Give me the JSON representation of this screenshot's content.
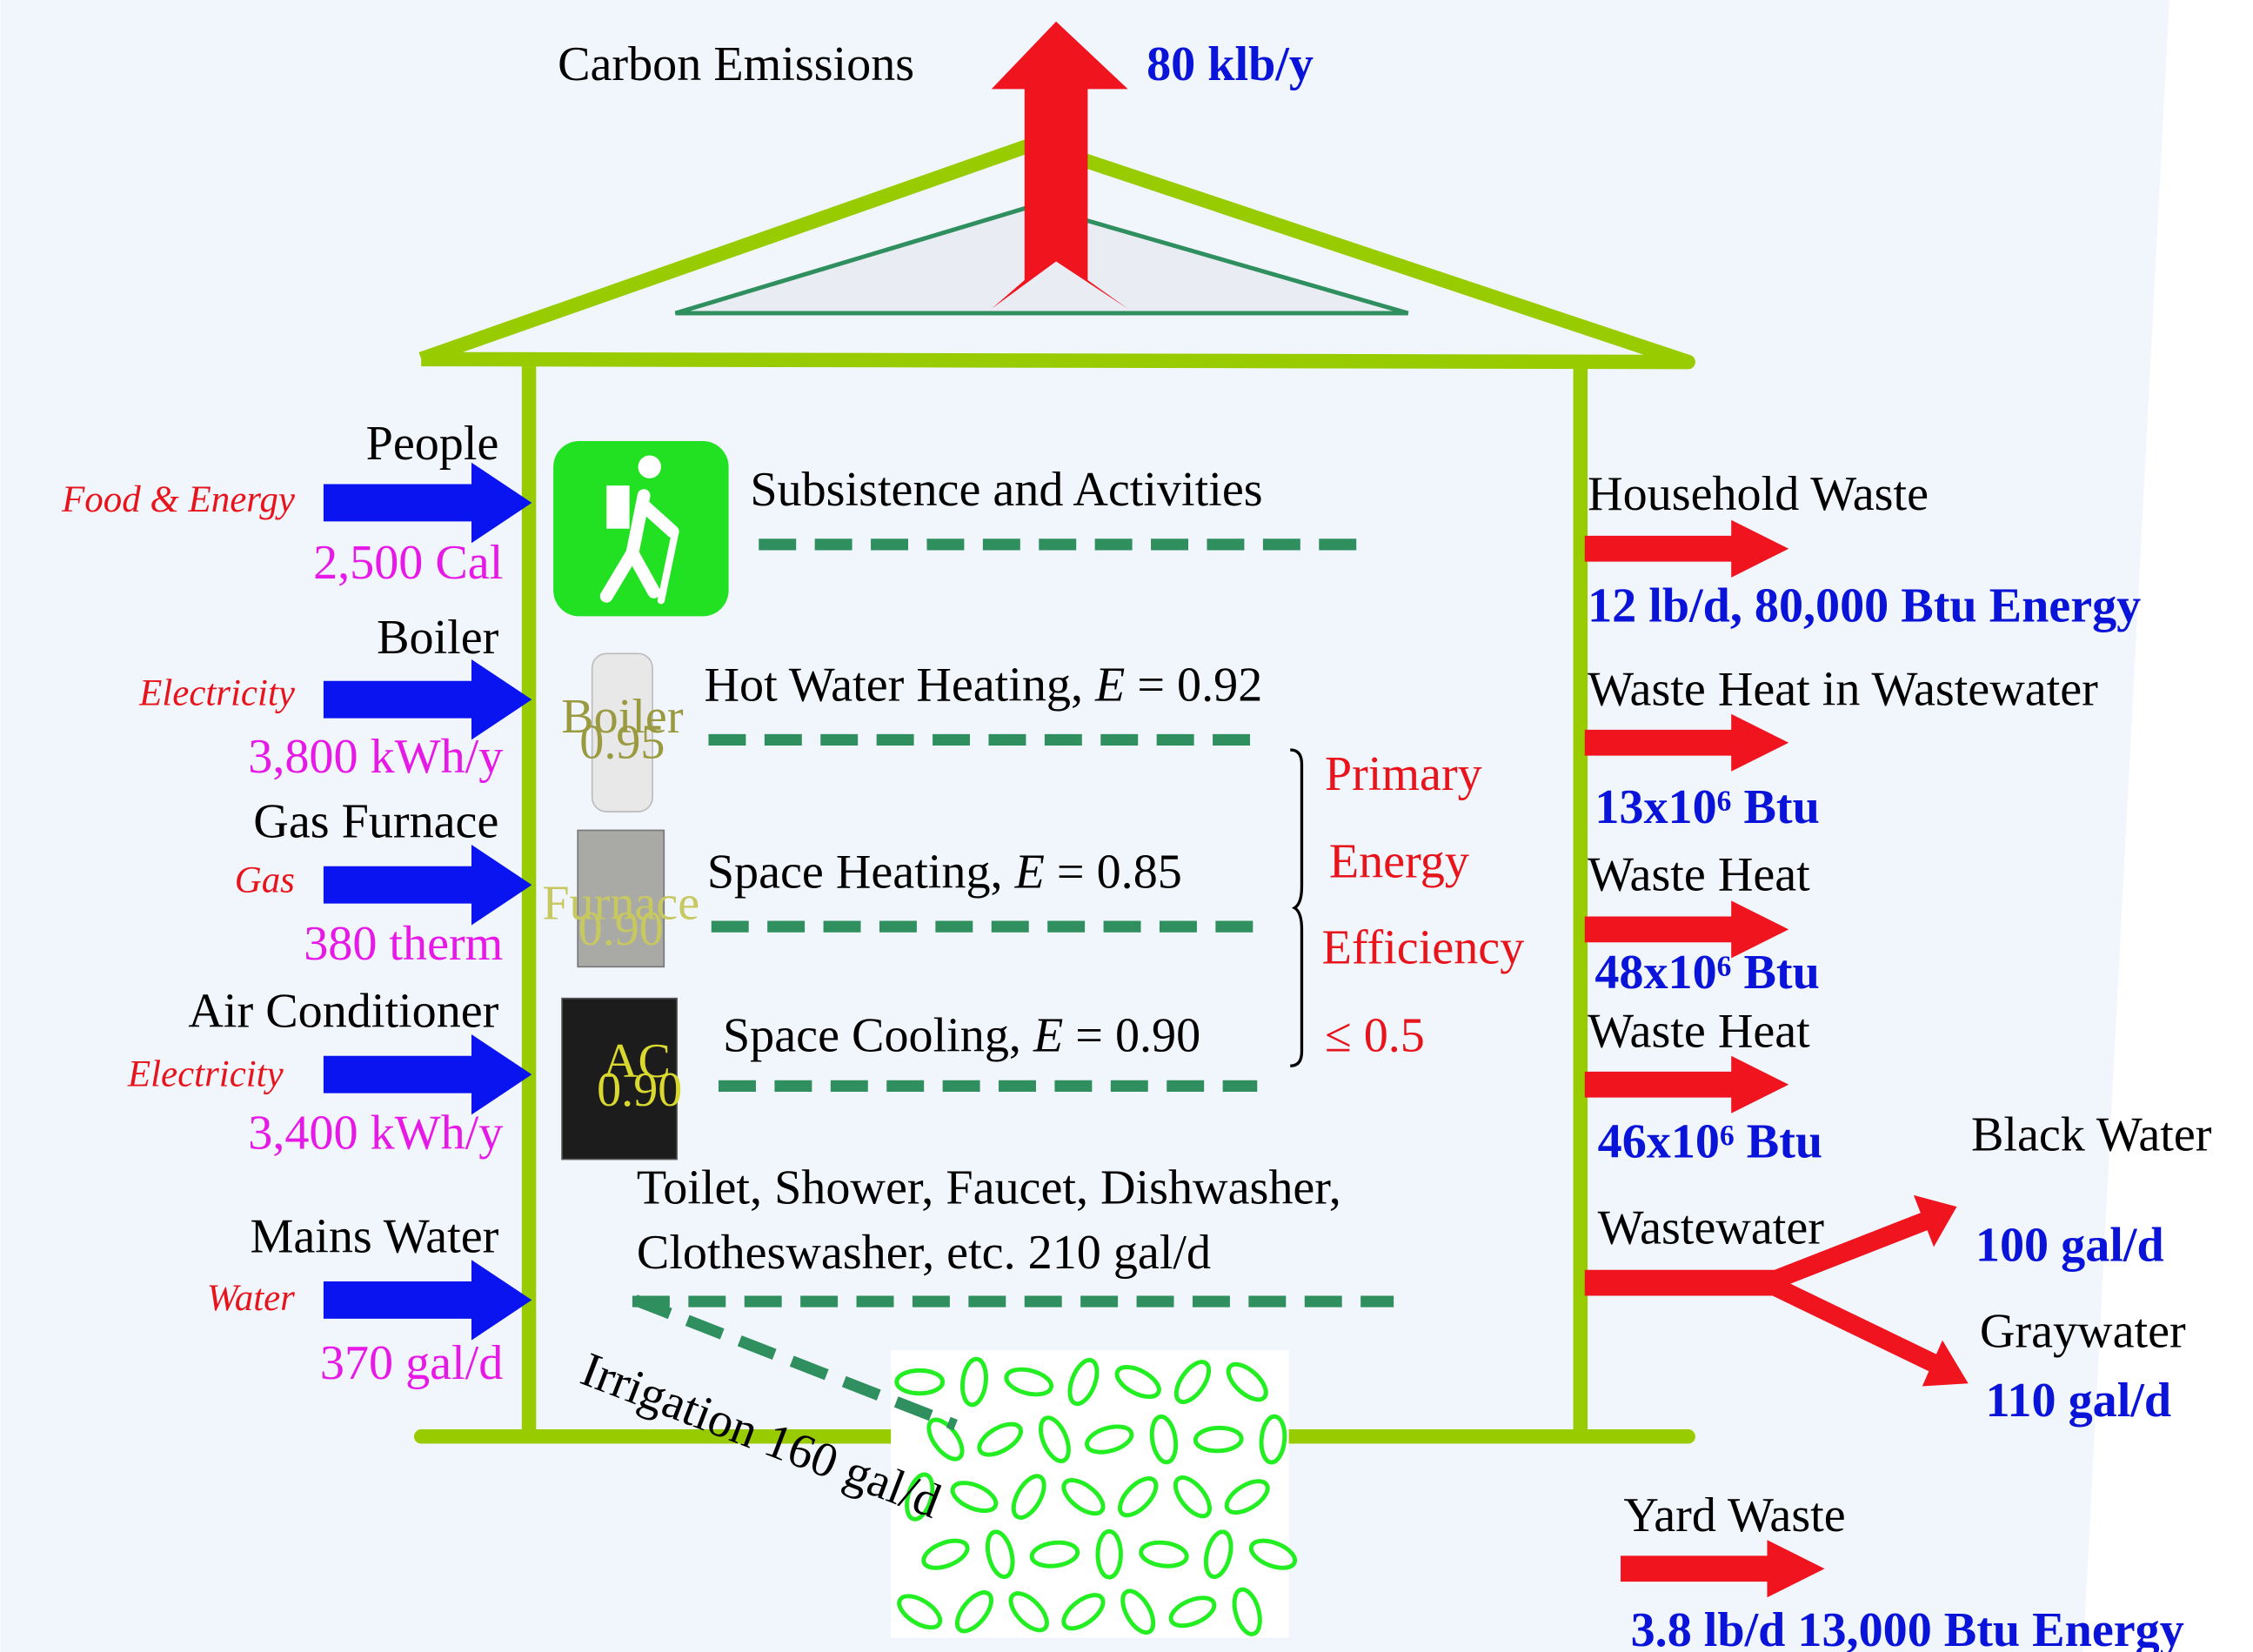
{
  "emissions": {
    "label": "Carbon Emissions",
    "value": "80 klb/y"
  },
  "inputs": [
    {
      "name": "People",
      "kind": "Food & Energy",
      "amount": "2,500 Cal"
    },
    {
      "name": "Boiler",
      "kind": "Electricity",
      "amount": "3,800 kWh/y"
    },
    {
      "name": "Gas Furnace",
      "kind": "Gas",
      "amount": "380 therm"
    },
    {
      "name": "Air Conditioner",
      "kind": "Electricity",
      "amount": "3,400 kWh/y"
    },
    {
      "name": "Mains Water",
      "kind": "Water",
      "amount": "370 gal/d"
    }
  ],
  "devices": {
    "boiler": "Boiler",
    "boiler_rating": "0.95",
    "furnace": "Furnace",
    "furnace_rating": "0.90",
    "ac": "AC",
    "ac_rating": "0.90"
  },
  "uses": [
    {
      "label": "Subsistence and Activities"
    },
    {
      "label": "Hot Water Heating,",
      "symbol": "E",
      "value": "= 0.92"
    },
    {
      "label": "Space Heating,",
      "symbol": "E",
      "value": "= 0.85"
    },
    {
      "label": "Space Cooling,",
      "symbol": "E",
      "value": "= 0.90"
    }
  ],
  "fixtures": [
    "Toilet, Shower, Faucet, Dishwasher,",
    "Clotheswasher, etc.  210 gal/d"
  ],
  "irrigation": "Irrigation 160 gal/d",
  "efficiency": [
    "Primary",
    "Energy",
    "Efficiency",
    "≤ 0.5"
  ],
  "outputs": [
    {
      "name": "Household Waste",
      "amount": "12 lb/d, 80,000 Btu Energy"
    },
    {
      "name": "Waste Heat in Wastewater",
      "amount": "13x10⁶ Btu"
    },
    {
      "name": "Waste Heat",
      "amount": "48x10⁶ Btu"
    },
    {
      "name": "Waste Heat",
      "amount": "46x10⁶ Btu"
    }
  ],
  "wastewater": {
    "name": "Wastewater",
    "branches": [
      {
        "name": "Black Water",
        "amount": "100 gal/d"
      },
      {
        "name": "Graywater",
        "amount": "110 gal/d"
      }
    ]
  },
  "yard": {
    "name": "Yard Waste",
    "amount": "3.8 lb/d 13,000 Btu Energy"
  }
}
